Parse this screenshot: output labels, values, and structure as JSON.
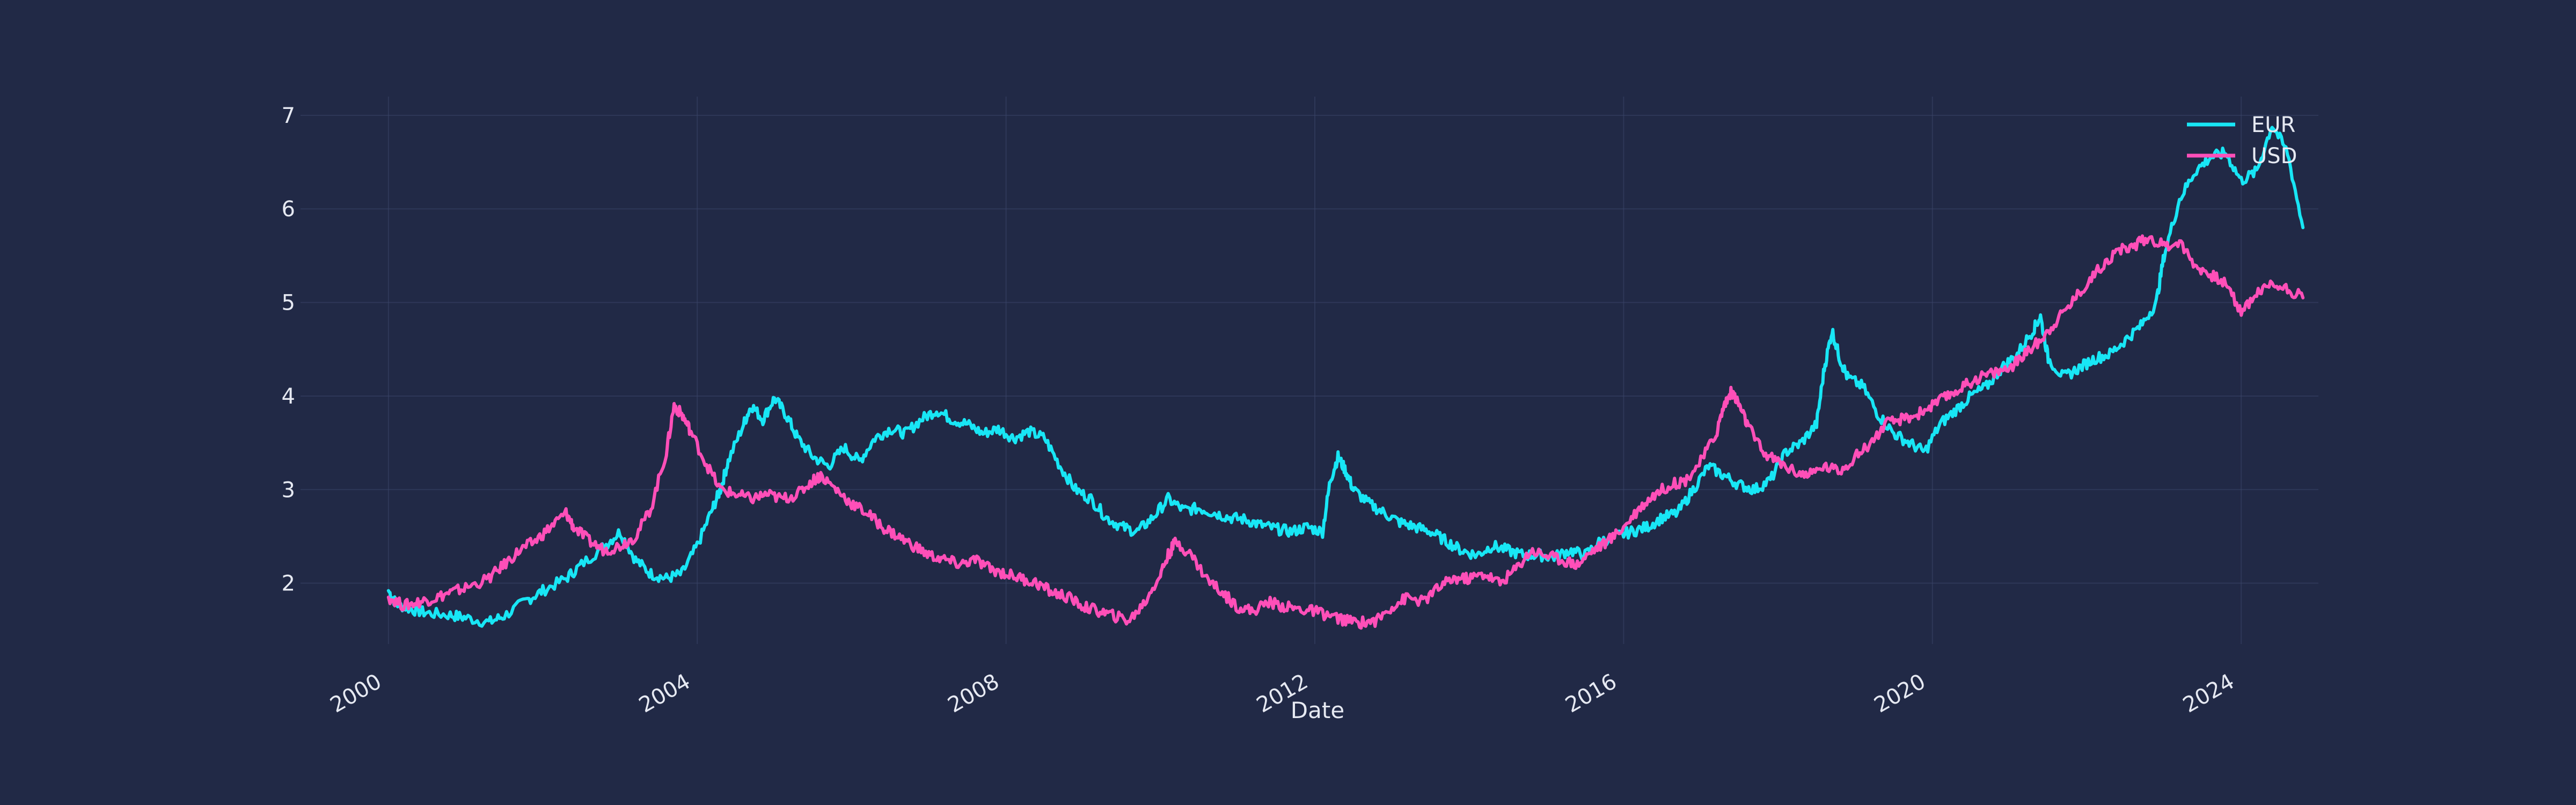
{
  "chart_data": {
    "type": "line",
    "title": "",
    "xlabel": "Date",
    "ylabel": "",
    "grid": true,
    "legend_position": "top-right",
    "xlim": [
      1999.0,
      2025.0
    ],
    "ylim": [
      1.35,
      7.2
    ],
    "x_ticks": [
      2000,
      2004,
      2008,
      2012,
      2016,
      2020,
      2024
    ],
    "x_tick_labels": [
      "2000",
      "2004",
      "2008",
      "2012",
      "2016",
      "2020",
      "2024"
    ],
    "y_ticks": [
      2,
      3,
      4,
      5,
      6,
      7
    ],
    "y_tick_labels": [
      "2",
      "3",
      "4",
      "5",
      "6",
      "7"
    ],
    "series": [
      {
        "name": "EUR",
        "color": "#18e6f5",
        "points": [
          [
            2000.0,
            1.92
          ],
          [
            2000.1,
            1.78
          ],
          [
            2000.3,
            1.72
          ],
          [
            2000.5,
            1.68
          ],
          [
            2000.8,
            1.66
          ],
          [
            2001.0,
            1.63
          ],
          [
            2001.3,
            1.58
          ],
          [
            2001.5,
            1.65
          ],
          [
            2001.8,
            1.82
          ],
          [
            2002.0,
            1.92
          ],
          [
            2002.3,
            2.05
          ],
          [
            2002.5,
            2.2
          ],
          [
            2002.8,
            2.4
          ],
          [
            2003.0,
            2.55
          ],
          [
            2003.2,
            2.25
          ],
          [
            2003.4,
            2.1
          ],
          [
            2003.6,
            2.05
          ],
          [
            2003.8,
            2.1
          ],
          [
            2004.0,
            2.4
          ],
          [
            2004.2,
            2.8
          ],
          [
            2004.3,
            3.0
          ],
          [
            2004.4,
            3.3
          ],
          [
            2004.6,
            3.7
          ],
          [
            2004.7,
            3.9
          ],
          [
            2004.85,
            3.75
          ],
          [
            2005.0,
            3.98
          ],
          [
            2005.15,
            3.8
          ],
          [
            2005.3,
            3.55
          ],
          [
            2005.5,
            3.35
          ],
          [
            2005.7,
            3.25
          ],
          [
            2005.9,
            3.45
          ],
          [
            2006.1,
            3.3
          ],
          [
            2006.3,
            3.55
          ],
          [
            2006.5,
            3.65
          ],
          [
            2006.7,
            3.6
          ],
          [
            2006.9,
            3.75
          ],
          [
            2007.1,
            3.85
          ],
          [
            2007.3,
            3.75
          ],
          [
            2007.5,
            3.7
          ],
          [
            2007.7,
            3.6
          ],
          [
            2007.9,
            3.65
          ],
          [
            2008.1,
            3.55
          ],
          [
            2008.3,
            3.62
          ],
          [
            2008.5,
            3.55
          ],
          [
            2008.7,
            3.25
          ],
          [
            2008.9,
            3.0
          ],
          [
            2009.1,
            2.9
          ],
          [
            2009.3,
            2.7
          ],
          [
            2009.5,
            2.6
          ],
          [
            2009.7,
            2.55
          ],
          [
            2009.9,
            2.7
          ],
          [
            2010.1,
            2.9
          ],
          [
            2010.3,
            2.78
          ],
          [
            2010.5,
            2.8
          ],
          [
            2010.7,
            2.75
          ],
          [
            2010.9,
            2.7
          ],
          [
            2011.1,
            2.68
          ],
          [
            2011.3,
            2.62
          ],
          [
            2011.5,
            2.58
          ],
          [
            2011.7,
            2.55
          ],
          [
            2011.9,
            2.6
          ],
          [
            2012.1,
            2.55
          ],
          [
            2012.2,
            3.1
          ],
          [
            2012.3,
            3.35
          ],
          [
            2012.4,
            3.2
          ],
          [
            2012.5,
            3.0
          ],
          [
            2012.7,
            2.85
          ],
          [
            2012.9,
            2.75
          ],
          [
            2013.1,
            2.65
          ],
          [
            2013.3,
            2.6
          ],
          [
            2013.5,
            2.55
          ],
          [
            2013.7,
            2.45
          ],
          [
            2013.9,
            2.35
          ],
          [
            2014.1,
            2.3
          ],
          [
            2014.3,
            2.4
          ],
          [
            2014.5,
            2.35
          ],
          [
            2014.7,
            2.3
          ],
          [
            2014.9,
            2.3
          ],
          [
            2015.1,
            2.28
          ],
          [
            2015.3,
            2.35
          ],
          [
            2015.5,
            2.3
          ],
          [
            2015.7,
            2.45
          ],
          [
            2015.9,
            2.5
          ],
          [
            2016.1,
            2.55
          ],
          [
            2016.3,
            2.6
          ],
          [
            2016.5,
            2.7
          ],
          [
            2016.7,
            2.75
          ],
          [
            2016.9,
            3.0
          ],
          [
            2017.1,
            3.25
          ],
          [
            2017.3,
            3.15
          ],
          [
            2017.5,
            3.05
          ],
          [
            2017.7,
            3.0
          ],
          [
            2017.9,
            3.1
          ],
          [
            2018.1,
            3.4
          ],
          [
            2018.3,
            3.5
          ],
          [
            2018.5,
            3.7
          ],
          [
            2018.6,
            4.3
          ],
          [
            2018.7,
            4.7
          ],
          [
            2018.8,
            4.4
          ],
          [
            2018.9,
            4.2
          ],
          [
            2019.1,
            4.1
          ],
          [
            2019.3,
            3.8
          ],
          [
            2019.5,
            3.6
          ],
          [
            2019.7,
            3.5
          ],
          [
            2019.9,
            3.4
          ],
          [
            2020.1,
            3.7
          ],
          [
            2020.3,
            3.85
          ],
          [
            2020.5,
            4.0
          ],
          [
            2020.7,
            4.1
          ],
          [
            2020.9,
            4.3
          ],
          [
            2021.1,
            4.45
          ],
          [
            2021.3,
            4.7
          ],
          [
            2021.4,
            4.85
          ],
          [
            2021.5,
            4.4
          ],
          [
            2021.7,
            4.2
          ],
          [
            2021.9,
            4.3
          ],
          [
            2022.1,
            4.4
          ],
          [
            2022.3,
            4.45
          ],
          [
            2022.5,
            4.6
          ],
          [
            2022.7,
            4.75
          ],
          [
            2022.9,
            5.0
          ],
          [
            2023.0,
            5.5
          ],
          [
            2023.2,
            6.1
          ],
          [
            2023.4,
            6.4
          ],
          [
            2023.6,
            6.55
          ],
          [
            2023.8,
            6.6
          ],
          [
            2024.0,
            6.3
          ],
          [
            2024.2,
            6.4
          ],
          [
            2024.4,
            6.9
          ],
          [
            2024.6,
            6.6
          ],
          [
            2024.8,
            5.8
          ]
        ]
      },
      {
        "name": "USD",
        "color": "#ff4fb8",
        "points": [
          [
            2000.0,
            1.85
          ],
          [
            2000.2,
            1.76
          ],
          [
            2000.4,
            1.8
          ],
          [
            2000.6,
            1.84
          ],
          [
            2000.8,
            1.9
          ],
          [
            2001.0,
            1.95
          ],
          [
            2001.3,
            2.05
          ],
          [
            2001.5,
            2.2
          ],
          [
            2001.7,
            2.35
          ],
          [
            2001.9,
            2.45
          ],
          [
            2002.1,
            2.6
          ],
          [
            2002.3,
            2.75
          ],
          [
            2002.4,
            2.6
          ],
          [
            2002.6,
            2.45
          ],
          [
            2002.8,
            2.35
          ],
          [
            2003.0,
            2.4
          ],
          [
            2003.2,
            2.5
          ],
          [
            2003.4,
            2.8
          ],
          [
            2003.6,
            3.4
          ],
          [
            2003.7,
            3.9
          ],
          [
            2003.8,
            3.8
          ],
          [
            2003.9,
            3.65
          ],
          [
            2004.1,
            3.3
          ],
          [
            2004.3,
            3.0
          ],
          [
            2004.5,
            2.95
          ],
          [
            2004.7,
            2.9
          ],
          [
            2004.9,
            2.95
          ],
          [
            2005.1,
            2.9
          ],
          [
            2005.3,
            2.95
          ],
          [
            2005.5,
            3.1
          ],
          [
            2005.6,
            3.15
          ],
          [
            2005.8,
            3.0
          ],
          [
            2006.0,
            2.85
          ],
          [
            2006.2,
            2.75
          ],
          [
            2006.4,
            2.6
          ],
          [
            2006.6,
            2.5
          ],
          [
            2006.8,
            2.4
          ],
          [
            2007.0,
            2.3
          ],
          [
            2007.2,
            2.25
          ],
          [
            2007.4,
            2.2
          ],
          [
            2007.6,
            2.25
          ],
          [
            2007.8,
            2.15
          ],
          [
            2008.0,
            2.1
          ],
          [
            2008.2,
            2.05
          ],
          [
            2008.4,
            2.0
          ],
          [
            2008.6,
            1.9
          ],
          [
            2008.8,
            1.85
          ],
          [
            2009.0,
            1.75
          ],
          [
            2009.2,
            1.7
          ],
          [
            2009.4,
            1.65
          ],
          [
            2009.6,
            1.6
          ],
          [
            2009.8,
            1.8
          ],
          [
            2010.0,
            2.1
          ],
          [
            2010.1,
            2.3
          ],
          [
            2010.2,
            2.45
          ],
          [
            2010.4,
            2.3
          ],
          [
            2010.6,
            2.05
          ],
          [
            2010.8,
            1.9
          ],
          [
            2011.0,
            1.75
          ],
          [
            2011.2,
            1.7
          ],
          [
            2011.4,
            1.8
          ],
          [
            2011.6,
            1.75
          ],
          [
            2011.8,
            1.72
          ],
          [
            2012.0,
            1.7
          ],
          [
            2012.2,
            1.65
          ],
          [
            2012.4,
            1.6
          ],
          [
            2012.6,
            1.58
          ],
          [
            2012.8,
            1.6
          ],
          [
            2013.0,
            1.75
          ],
          [
            2013.2,
            1.85
          ],
          [
            2013.4,
            1.8
          ],
          [
            2013.6,
            1.95
          ],
          [
            2013.8,
            2.05
          ],
          [
            2014.0,
            2.05
          ],
          [
            2014.2,
            2.1
          ],
          [
            2014.4,
            2.0
          ],
          [
            2014.6,
            2.15
          ],
          [
            2014.8,
            2.35
          ],
          [
            2015.0,
            2.3
          ],
          [
            2015.2,
            2.25
          ],
          [
            2015.4,
            2.2
          ],
          [
            2015.6,
            2.35
          ],
          [
            2015.8,
            2.45
          ],
          [
            2016.0,
            2.6
          ],
          [
            2016.2,
            2.8
          ],
          [
            2016.4,
            2.95
          ],
          [
            2016.6,
            3.05
          ],
          [
            2016.8,
            3.1
          ],
          [
            2017.0,
            3.3
          ],
          [
            2017.2,
            3.6
          ],
          [
            2017.3,
            3.9
          ],
          [
            2017.4,
            4.05
          ],
          [
            2017.5,
            3.9
          ],
          [
            2017.6,
            3.7
          ],
          [
            2017.8,
            3.4
          ],
          [
            2018.0,
            3.3
          ],
          [
            2018.2,
            3.2
          ],
          [
            2018.4,
            3.15
          ],
          [
            2018.6,
            3.25
          ],
          [
            2018.8,
            3.2
          ],
          [
            2019.0,
            3.35
          ],
          [
            2019.2,
            3.5
          ],
          [
            2019.4,
            3.7
          ],
          [
            2019.6,
            3.75
          ],
          [
            2019.8,
            3.8
          ],
          [
            2020.0,
            3.9
          ],
          [
            2020.2,
            4.0
          ],
          [
            2020.4,
            4.1
          ],
          [
            2020.6,
            4.2
          ],
          [
            2020.8,
            4.25
          ],
          [
            2021.0,
            4.3
          ],
          [
            2021.2,
            4.45
          ],
          [
            2021.4,
            4.6
          ],
          [
            2021.6,
            4.8
          ],
          [
            2021.8,
            5.0
          ],
          [
            2022.0,
            5.2
          ],
          [
            2022.2,
            5.4
          ],
          [
            2022.4,
            5.55
          ],
          [
            2022.6,
            5.6
          ],
          [
            2022.8,
            5.7
          ],
          [
            2023.0,
            5.6
          ],
          [
            2023.2,
            5.65
          ],
          [
            2023.4,
            5.4
          ],
          [
            2023.6,
            5.3
          ],
          [
            2023.8,
            5.2
          ],
          [
            2024.0,
            4.9
          ],
          [
            2024.2,
            5.1
          ],
          [
            2024.4,
            5.2
          ],
          [
            2024.6,
            5.15
          ],
          [
            2024.8,
            5.05
          ]
        ]
      }
    ]
  }
}
